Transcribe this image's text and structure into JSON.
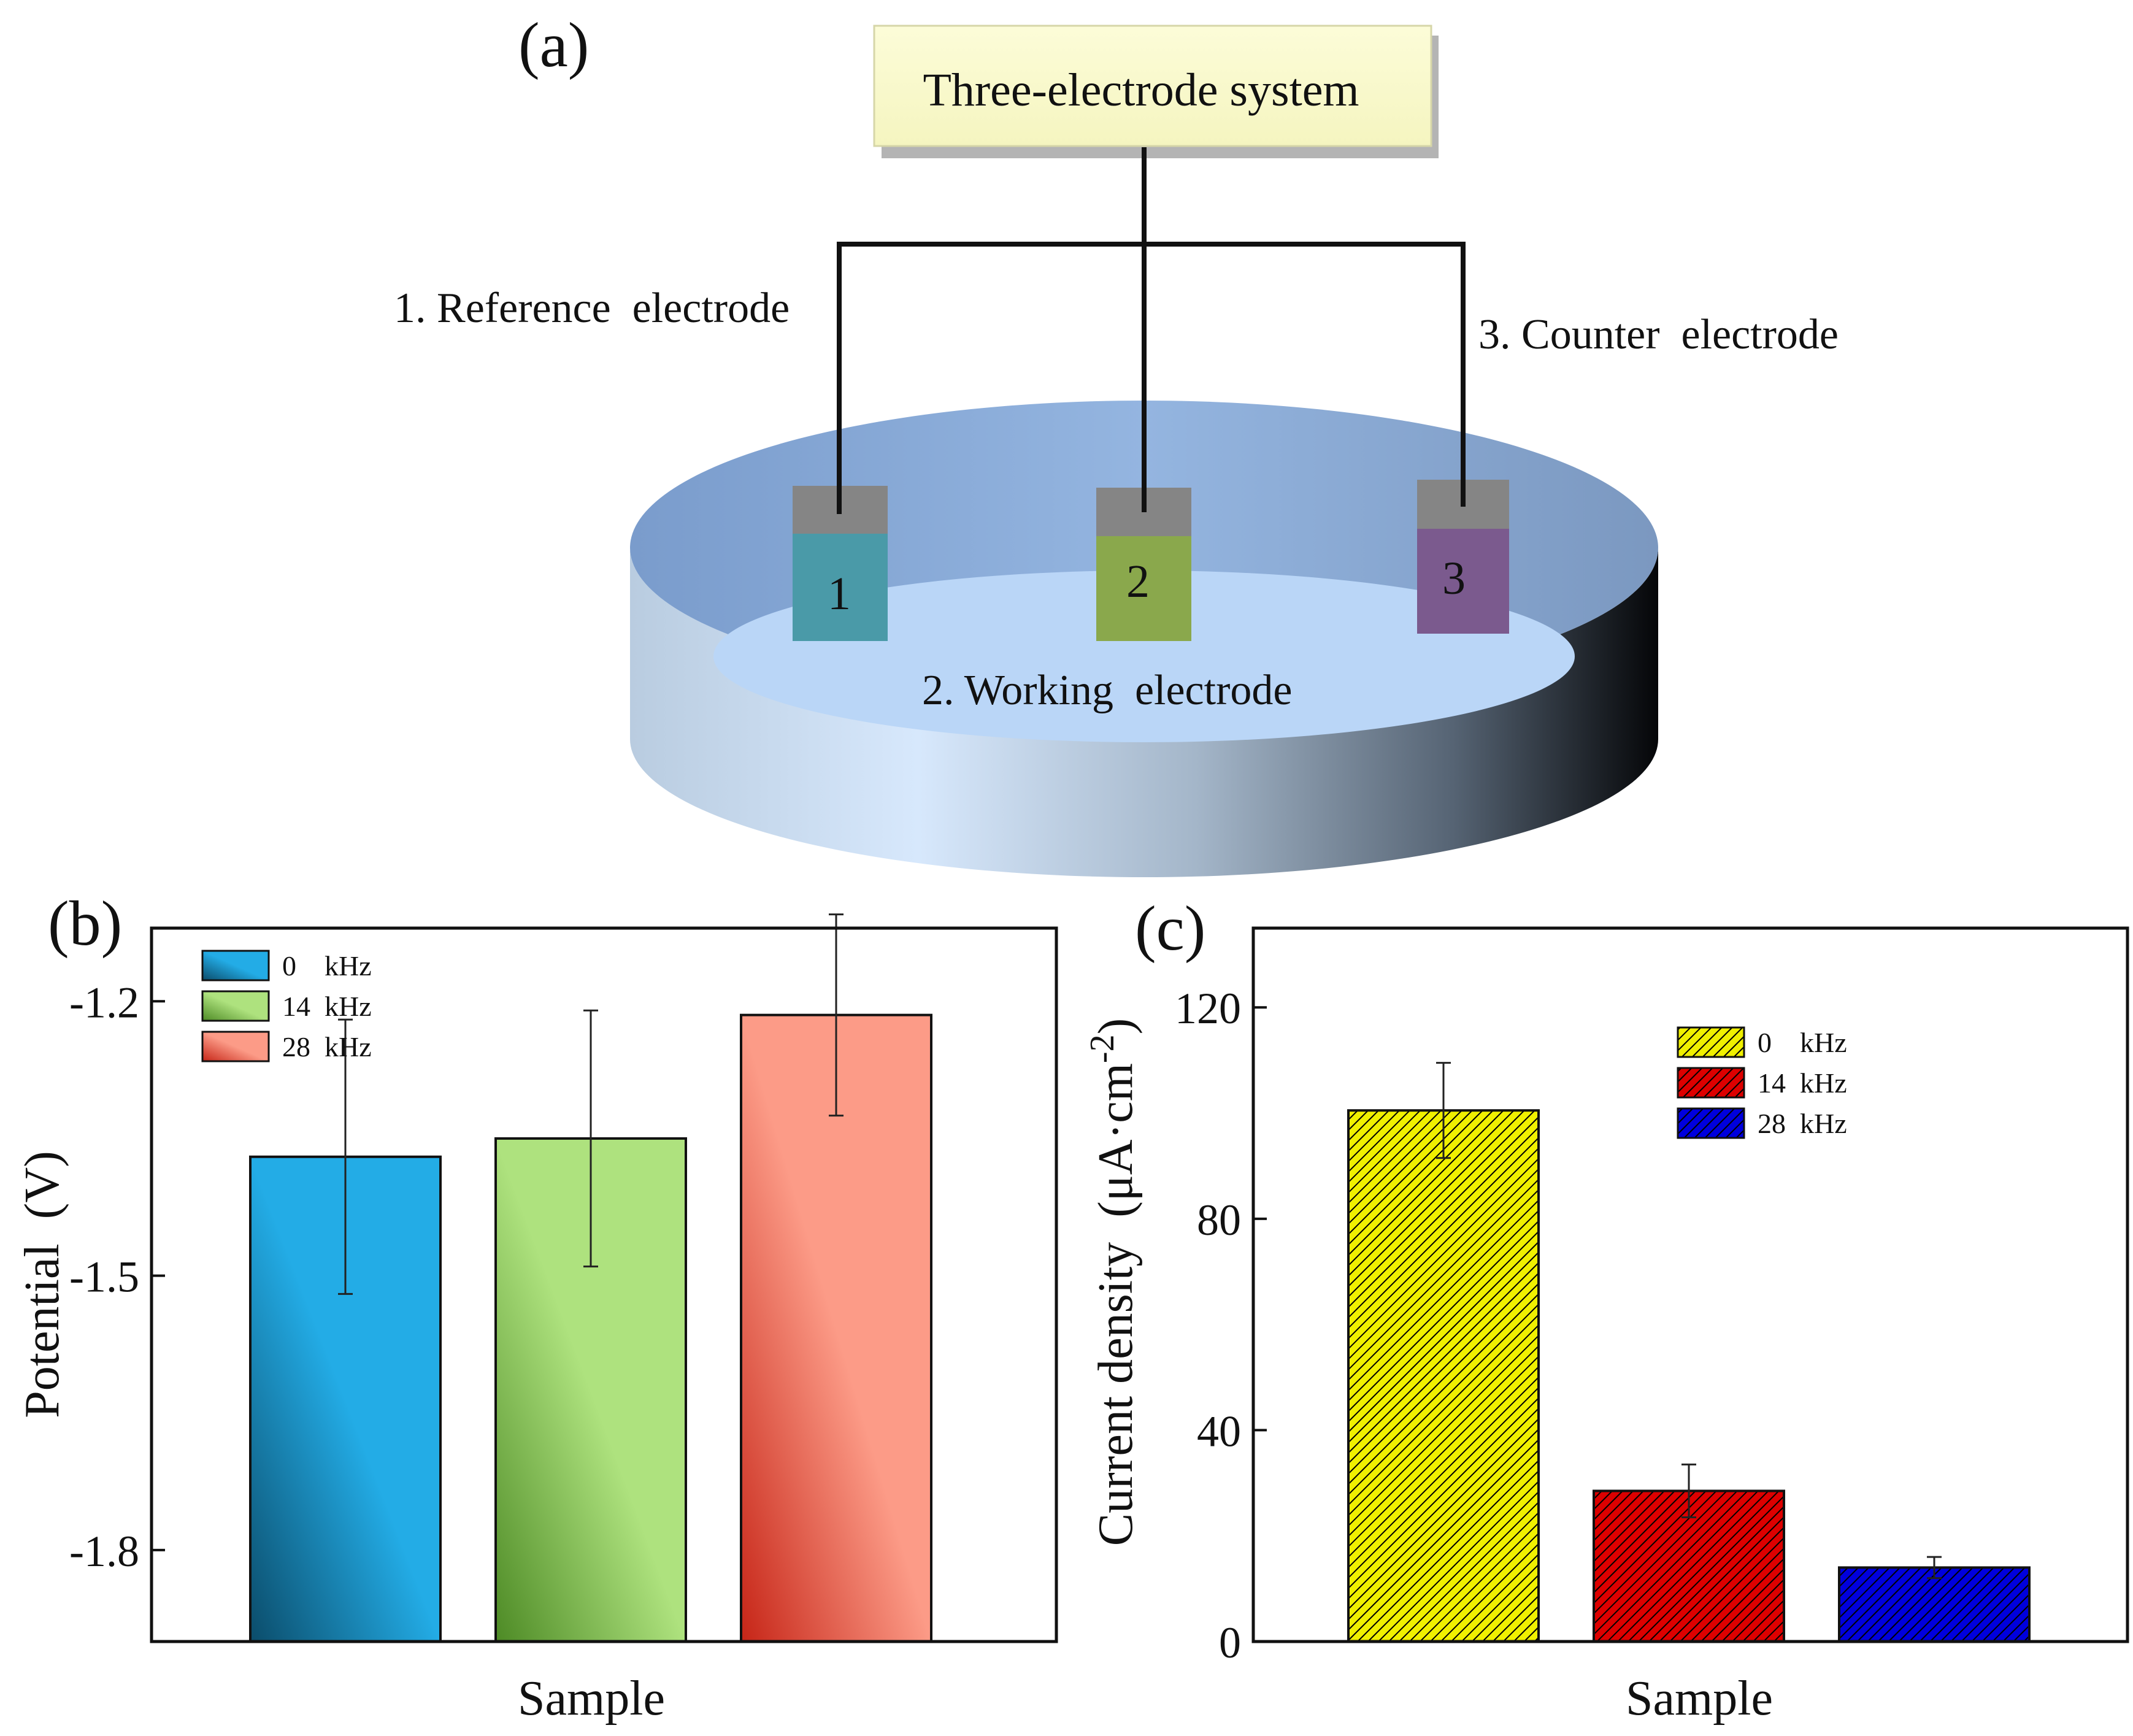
{
  "panel_a": {
    "label": "(a)",
    "system_label": "Three-electrode system",
    "reference_label": "1. Reference  electrode",
    "working_label": "2. Working  electrode",
    "counter_label": "3. Counter  electrode",
    "electrode_numbers": [
      "1",
      "2",
      "3"
    ],
    "electrode_colors": [
      "#4a9aa8",
      "#8aa84c",
      "#7b5a8e"
    ],
    "cap_color": "#858585"
  },
  "chart_data": [
    {
      "panel_label": "(b)",
      "type": "bar",
      "title": "",
      "xlabel": "Sample",
      "ylabel": "Potential  (V)",
      "ylim": [
        -1.9,
        -1.12
      ],
      "yticks": [
        -1.8,
        -1.5,
        -1.2
      ],
      "ytick_labels": [
        "-1.8",
        "-1.5",
        "-1.2"
      ],
      "legend_position": "top-left",
      "series": [
        {
          "name": "0    kHz",
          "value": -1.37,
          "error": 0.15,
          "color": "#23ace6",
          "dark": "#0b4c6a"
        },
        {
          "name": "14  kHz",
          "value": -1.35,
          "error": 0.14,
          "color": "#aee27e",
          "dark": "#4d8a25"
        },
        {
          "name": "28  kHz",
          "value": -1.215,
          "error": 0.11,
          "color": "#fc9b87",
          "dark": "#c62517"
        }
      ]
    },
    {
      "panel_label": "(c)",
      "type": "bar",
      "title": "",
      "xlabel": "Sample",
      "ylabel": "Current density  (μA·cm",
      "ylabel_sup": "-2",
      "ylabel_close": ")",
      "ylim": [
        0,
        135
      ],
      "yticks": [
        0,
        40,
        80,
        120
      ],
      "ytick_labels": [
        "0",
        "40",
        "80",
        "120"
      ],
      "legend_position": "top-right",
      "series": [
        {
          "name": "0    kHz",
          "value": 100.5,
          "error": 9,
          "color": "#f0f000"
        },
        {
          "name": "14  kHz",
          "value": 28.5,
          "error": 5,
          "color": "#dd0000"
        },
        {
          "name": "28  kHz",
          "value": 14,
          "error": 2,
          "color": "#0000dd"
        }
      ]
    }
  ]
}
